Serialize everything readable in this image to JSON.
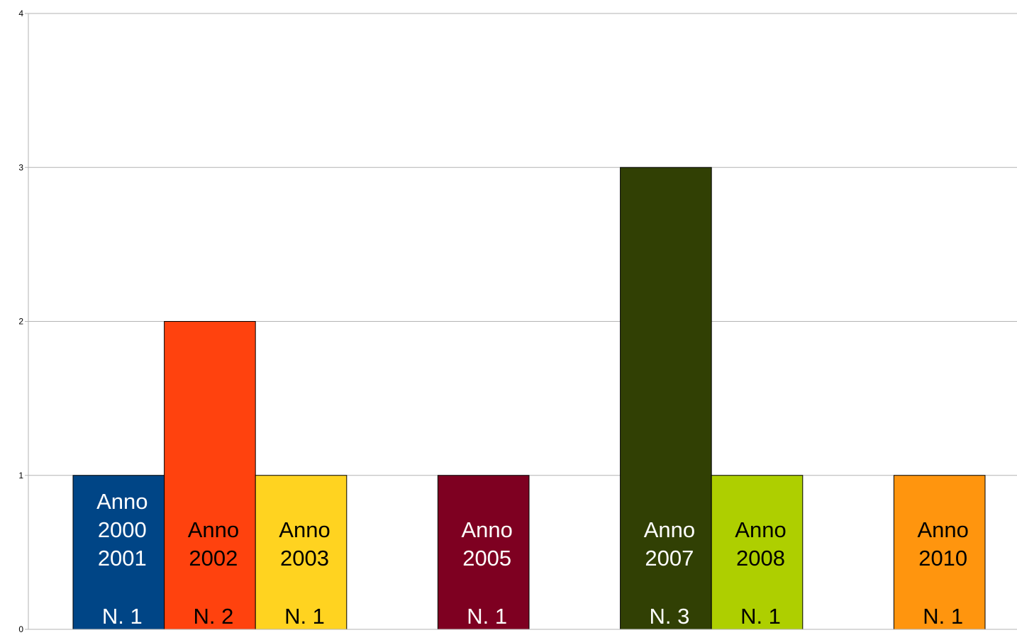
{
  "chart_data": {
    "type": "bar",
    "title": "",
    "xlabel": "",
    "ylabel": "",
    "ylim": [
      0,
      4
    ],
    "yticks": [
      "0",
      "1",
      "2",
      "3",
      "4"
    ],
    "grid": true,
    "legend": "none",
    "slots": 11,
    "bars": [
      {
        "slot": 0,
        "value": 1,
        "color": "#004586",
        "text_color": "#ffffff",
        "label_lines": [
          "Anno",
          "2000",
          "2001"
        ],
        "count_label": "N. 1"
      },
      {
        "slot": 1,
        "value": 2,
        "color": "#ff420e",
        "text_color": "#000000",
        "label_lines": [
          "Anno",
          "2002"
        ],
        "count_label": "N. 2"
      },
      {
        "slot": 2,
        "value": 1,
        "color": "#ffd320",
        "text_color": "#000000",
        "label_lines": [
          "Anno",
          "2003"
        ],
        "count_label": "N. 1"
      },
      {
        "slot": 4,
        "value": 1,
        "color": "#7e0021",
        "text_color": "#ffffff",
        "label_lines": [
          "Anno",
          "2005"
        ],
        "count_label": "N. 1"
      },
      {
        "slot": 6,
        "value": 3,
        "color": "#314004",
        "text_color": "#ffffff",
        "label_lines": [
          "Anno",
          "2007"
        ],
        "count_label": "N. 3"
      },
      {
        "slot": 7,
        "value": 1,
        "color": "#aecf00",
        "text_color": "#000000",
        "label_lines": [
          "Anno",
          "2008"
        ],
        "count_label": "N. 1"
      },
      {
        "slot": 9,
        "value": 1,
        "color": "#ff950e",
        "text_color": "#000000",
        "label_lines": [
          "Anno",
          "2010"
        ],
        "count_label": "N. 1"
      }
    ]
  }
}
